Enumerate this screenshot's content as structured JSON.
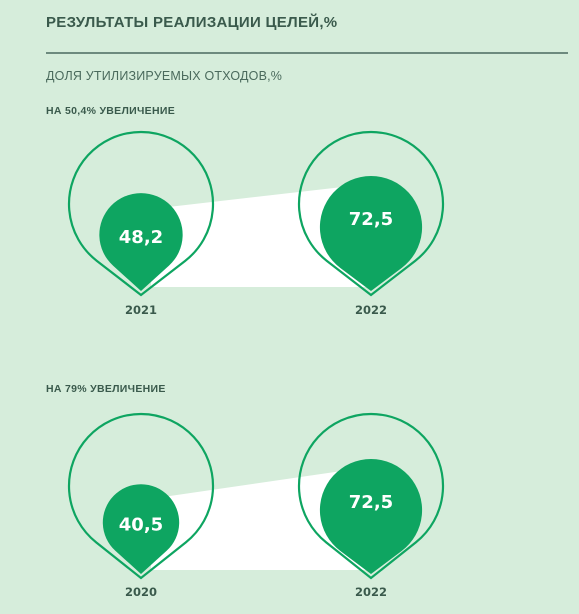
{
  "header": {
    "title": "РЕЗУЛЬТАТЫ РЕАЛИЗАЦИИ ЦЕЛЕЙ,%",
    "subtitle": "ДОЛЯ УТИЛИЗИРУЕМЫХ ОТХОДОВ,%"
  },
  "colors": {
    "background": "#d6eddb",
    "accent": "#0ea561",
    "band": "#ffffff",
    "text": "#3a5a4c"
  },
  "chart_data": [
    {
      "type": "bubble-comparison",
      "annotation": "НА 50,4% УВЕЛИЧЕНИЕ",
      "categories": [
        "2021",
        "2022"
      ],
      "values": [
        48.2,
        72.5
      ],
      "value_labels": [
        "48,2",
        "72,5"
      ],
      "scale_max": 100
    },
    {
      "type": "bubble-comparison",
      "annotation": "НА 79% УВЕЛИЧЕНИЕ",
      "categories": [
        "2020",
        "2022"
      ],
      "values": [
        40.5,
        72.5
      ],
      "value_labels": [
        "40,5",
        "72,5"
      ],
      "scale_max": 100
    }
  ]
}
